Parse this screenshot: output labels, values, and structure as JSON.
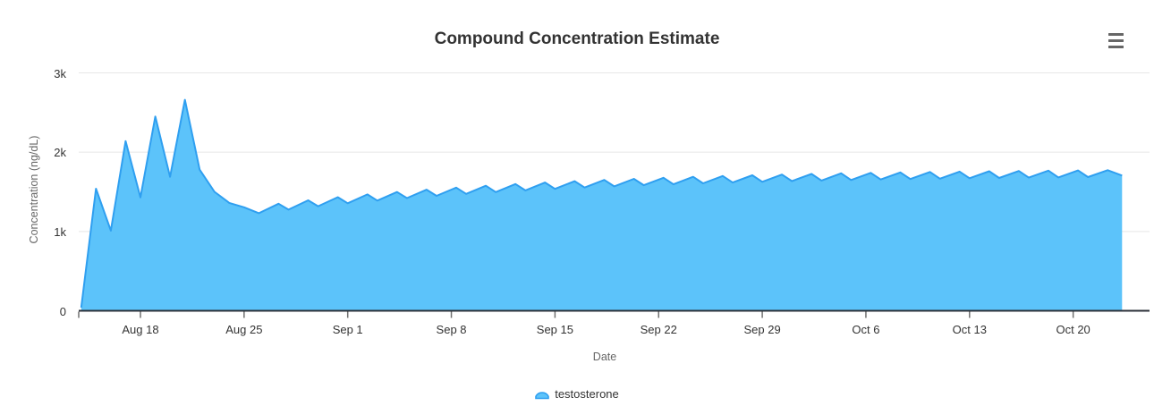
{
  "chart": {
    "title": "Compound Concentration Estimate",
    "export_menu": "context-menu"
  },
  "chart_data": {
    "type": "area",
    "title": "Compound Concentration Estimate",
    "xlabel": "Date",
    "ylabel": "Concentration (ng/dL)",
    "grid": "horizontal",
    "legend_position": "bottom-center",
    "ylim": [
      0,
      3000
    ],
    "y_ticks": [
      {
        "value": 0,
        "label": "0"
      },
      {
        "value": 1000,
        "label": "1k"
      },
      {
        "value": 2000,
        "label": "2k"
      },
      {
        "value": 3000,
        "label": "3k"
      }
    ],
    "x_start_date": "Aug 14",
    "x_unit": "days since Aug 14",
    "x_ticks": [
      {
        "day": 4,
        "label": "Aug 18"
      },
      {
        "day": 11,
        "label": "Aug 25"
      },
      {
        "day": 18,
        "label": "Sep 1"
      },
      {
        "day": 25,
        "label": "Sep 8"
      },
      {
        "day": 32,
        "label": "Sep 15"
      },
      {
        "day": 39,
        "label": "Sep 22"
      },
      {
        "day": 46,
        "label": "Sep 29"
      },
      {
        "day": 53,
        "label": "Oct 6"
      },
      {
        "day": 60,
        "label": "Oct 13"
      },
      {
        "day": 67,
        "label": "Oct 20"
      }
    ],
    "colors": {
      "series_line": "#2f9ff0",
      "series_fill": "#5cc3fa",
      "grid": "#e7e7e7",
      "axis_line": "#2b3038",
      "tick": "#707070",
      "title_text": "#333333",
      "axis_label": "#333333",
      "axis_title": "#666666",
      "legend_text": "#333333",
      "menu_icon": "#666666"
    },
    "series": [
      {
        "name": "testosterone",
        "points": [
          [
            0,
            40
          ],
          [
            1,
            1540
          ],
          [
            2,
            1010
          ],
          [
            3,
            2140
          ],
          [
            4,
            1430
          ],
          [
            5,
            2450
          ],
          [
            6,
            1690
          ],
          [
            7,
            2660
          ],
          [
            8,
            1780
          ],
          [
            9,
            1500
          ],
          [
            10,
            1360
          ],
          [
            11,
            1305
          ],
          [
            12,
            1230
          ],
          [
            13.33,
            1350
          ],
          [
            14,
            1276
          ],
          [
            15.33,
            1393
          ],
          [
            16,
            1318
          ],
          [
            17.33,
            1432
          ],
          [
            18,
            1356
          ],
          [
            19.33,
            1467
          ],
          [
            20,
            1390
          ],
          [
            21.33,
            1498
          ],
          [
            22,
            1421
          ],
          [
            23.33,
            1527
          ],
          [
            24,
            1449
          ],
          [
            25.33,
            1553
          ],
          [
            26,
            1474
          ],
          [
            27.33,
            1577
          ],
          [
            28,
            1497
          ],
          [
            29.33,
            1598
          ],
          [
            30,
            1518
          ],
          [
            31.33,
            1617
          ],
          [
            32,
            1537
          ],
          [
            33.33,
            1634
          ],
          [
            34,
            1554
          ],
          [
            35.33,
            1650
          ],
          [
            36,
            1569
          ],
          [
            37.33,
            1664
          ],
          [
            38,
            1583
          ],
          [
            39.33,
            1677
          ],
          [
            40,
            1595
          ],
          [
            41.33,
            1689
          ],
          [
            42,
            1607
          ],
          [
            43.33,
            1700
          ],
          [
            44,
            1617
          ],
          [
            45.33,
            1709
          ],
          [
            46,
            1626
          ],
          [
            47.33,
            1718
          ],
          [
            48,
            1635
          ],
          [
            49.33,
            1726
          ],
          [
            50,
            1642
          ],
          [
            51.33,
            1733
          ],
          [
            52,
            1649
          ],
          [
            53.33,
            1739
          ],
          [
            54,
            1656
          ],
          [
            55.33,
            1745
          ],
          [
            56,
            1661
          ],
          [
            57.33,
            1750
          ],
          [
            58,
            1666
          ],
          [
            59.33,
            1755
          ],
          [
            60,
            1671
          ],
          [
            61.33,
            1759
          ],
          [
            62,
            1675
          ],
          [
            63.33,
            1763
          ],
          [
            64,
            1679
          ],
          [
            65.33,
            1767
          ],
          [
            66,
            1682
          ],
          [
            67.33,
            1770
          ],
          [
            68,
            1686
          ],
          [
            69.33,
            1773
          ],
          [
            70.3,
            1705
          ]
        ]
      }
    ]
  }
}
